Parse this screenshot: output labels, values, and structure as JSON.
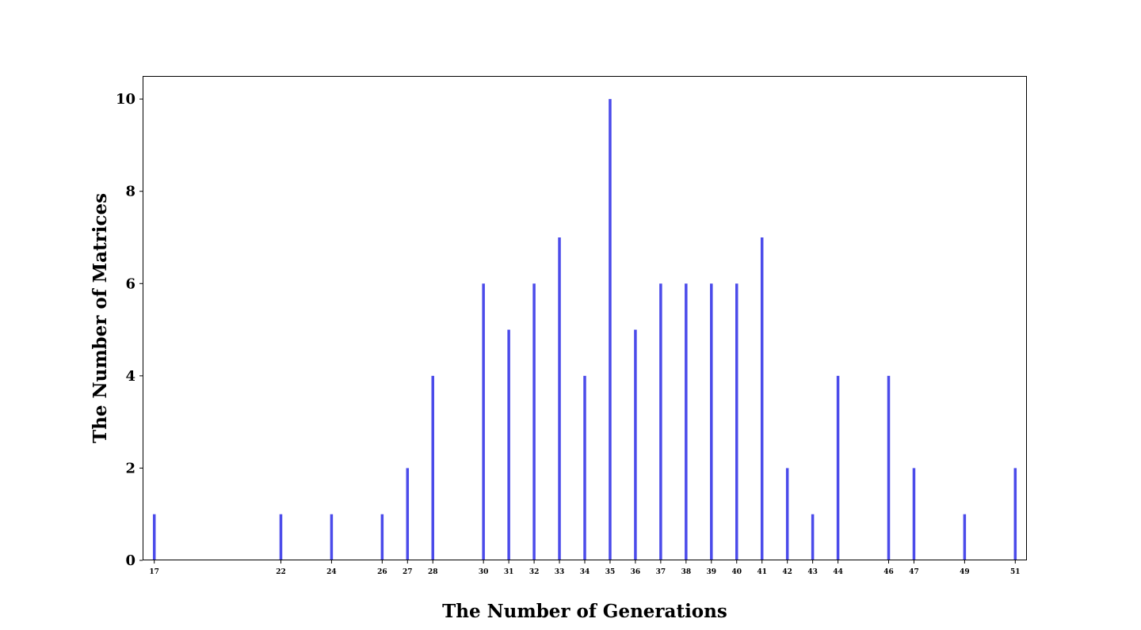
{
  "chart_data": {
    "type": "bar",
    "title": "",
    "xlabel": "The Number of Generations",
    "ylabel": "The Number of Matrices",
    "x": [
      17,
      22,
      24,
      26,
      27,
      28,
      30,
      31,
      32,
      33,
      34,
      35,
      36,
      37,
      38,
      39,
      40,
      41,
      42,
      43,
      44,
      46,
      47,
      49,
      51
    ],
    "values": [
      1,
      1,
      1,
      1,
      2,
      4,
      6,
      5,
      6,
      7,
      4,
      10,
      5,
      6,
      6,
      6,
      6,
      7,
      2,
      1,
      4,
      4,
      2,
      1,
      2
    ],
    "xticks": [
      "17",
      "22",
      "24",
      "26",
      "27",
      "28",
      "30",
      "31",
      "32",
      "33",
      "34",
      "35",
      "36",
      "37",
      "38",
      "39",
      "40",
      "41",
      "42",
      "43",
      "44",
      "46",
      "47",
      "49",
      "51"
    ],
    "yticks": [
      "0",
      "2",
      "4",
      "6",
      "8",
      "10"
    ],
    "xlim": [
      16.54,
      51.46
    ],
    "ylim": [
      0,
      10.5
    ],
    "grid": false,
    "legend": "none",
    "bar_color": "#4b4bea"
  }
}
